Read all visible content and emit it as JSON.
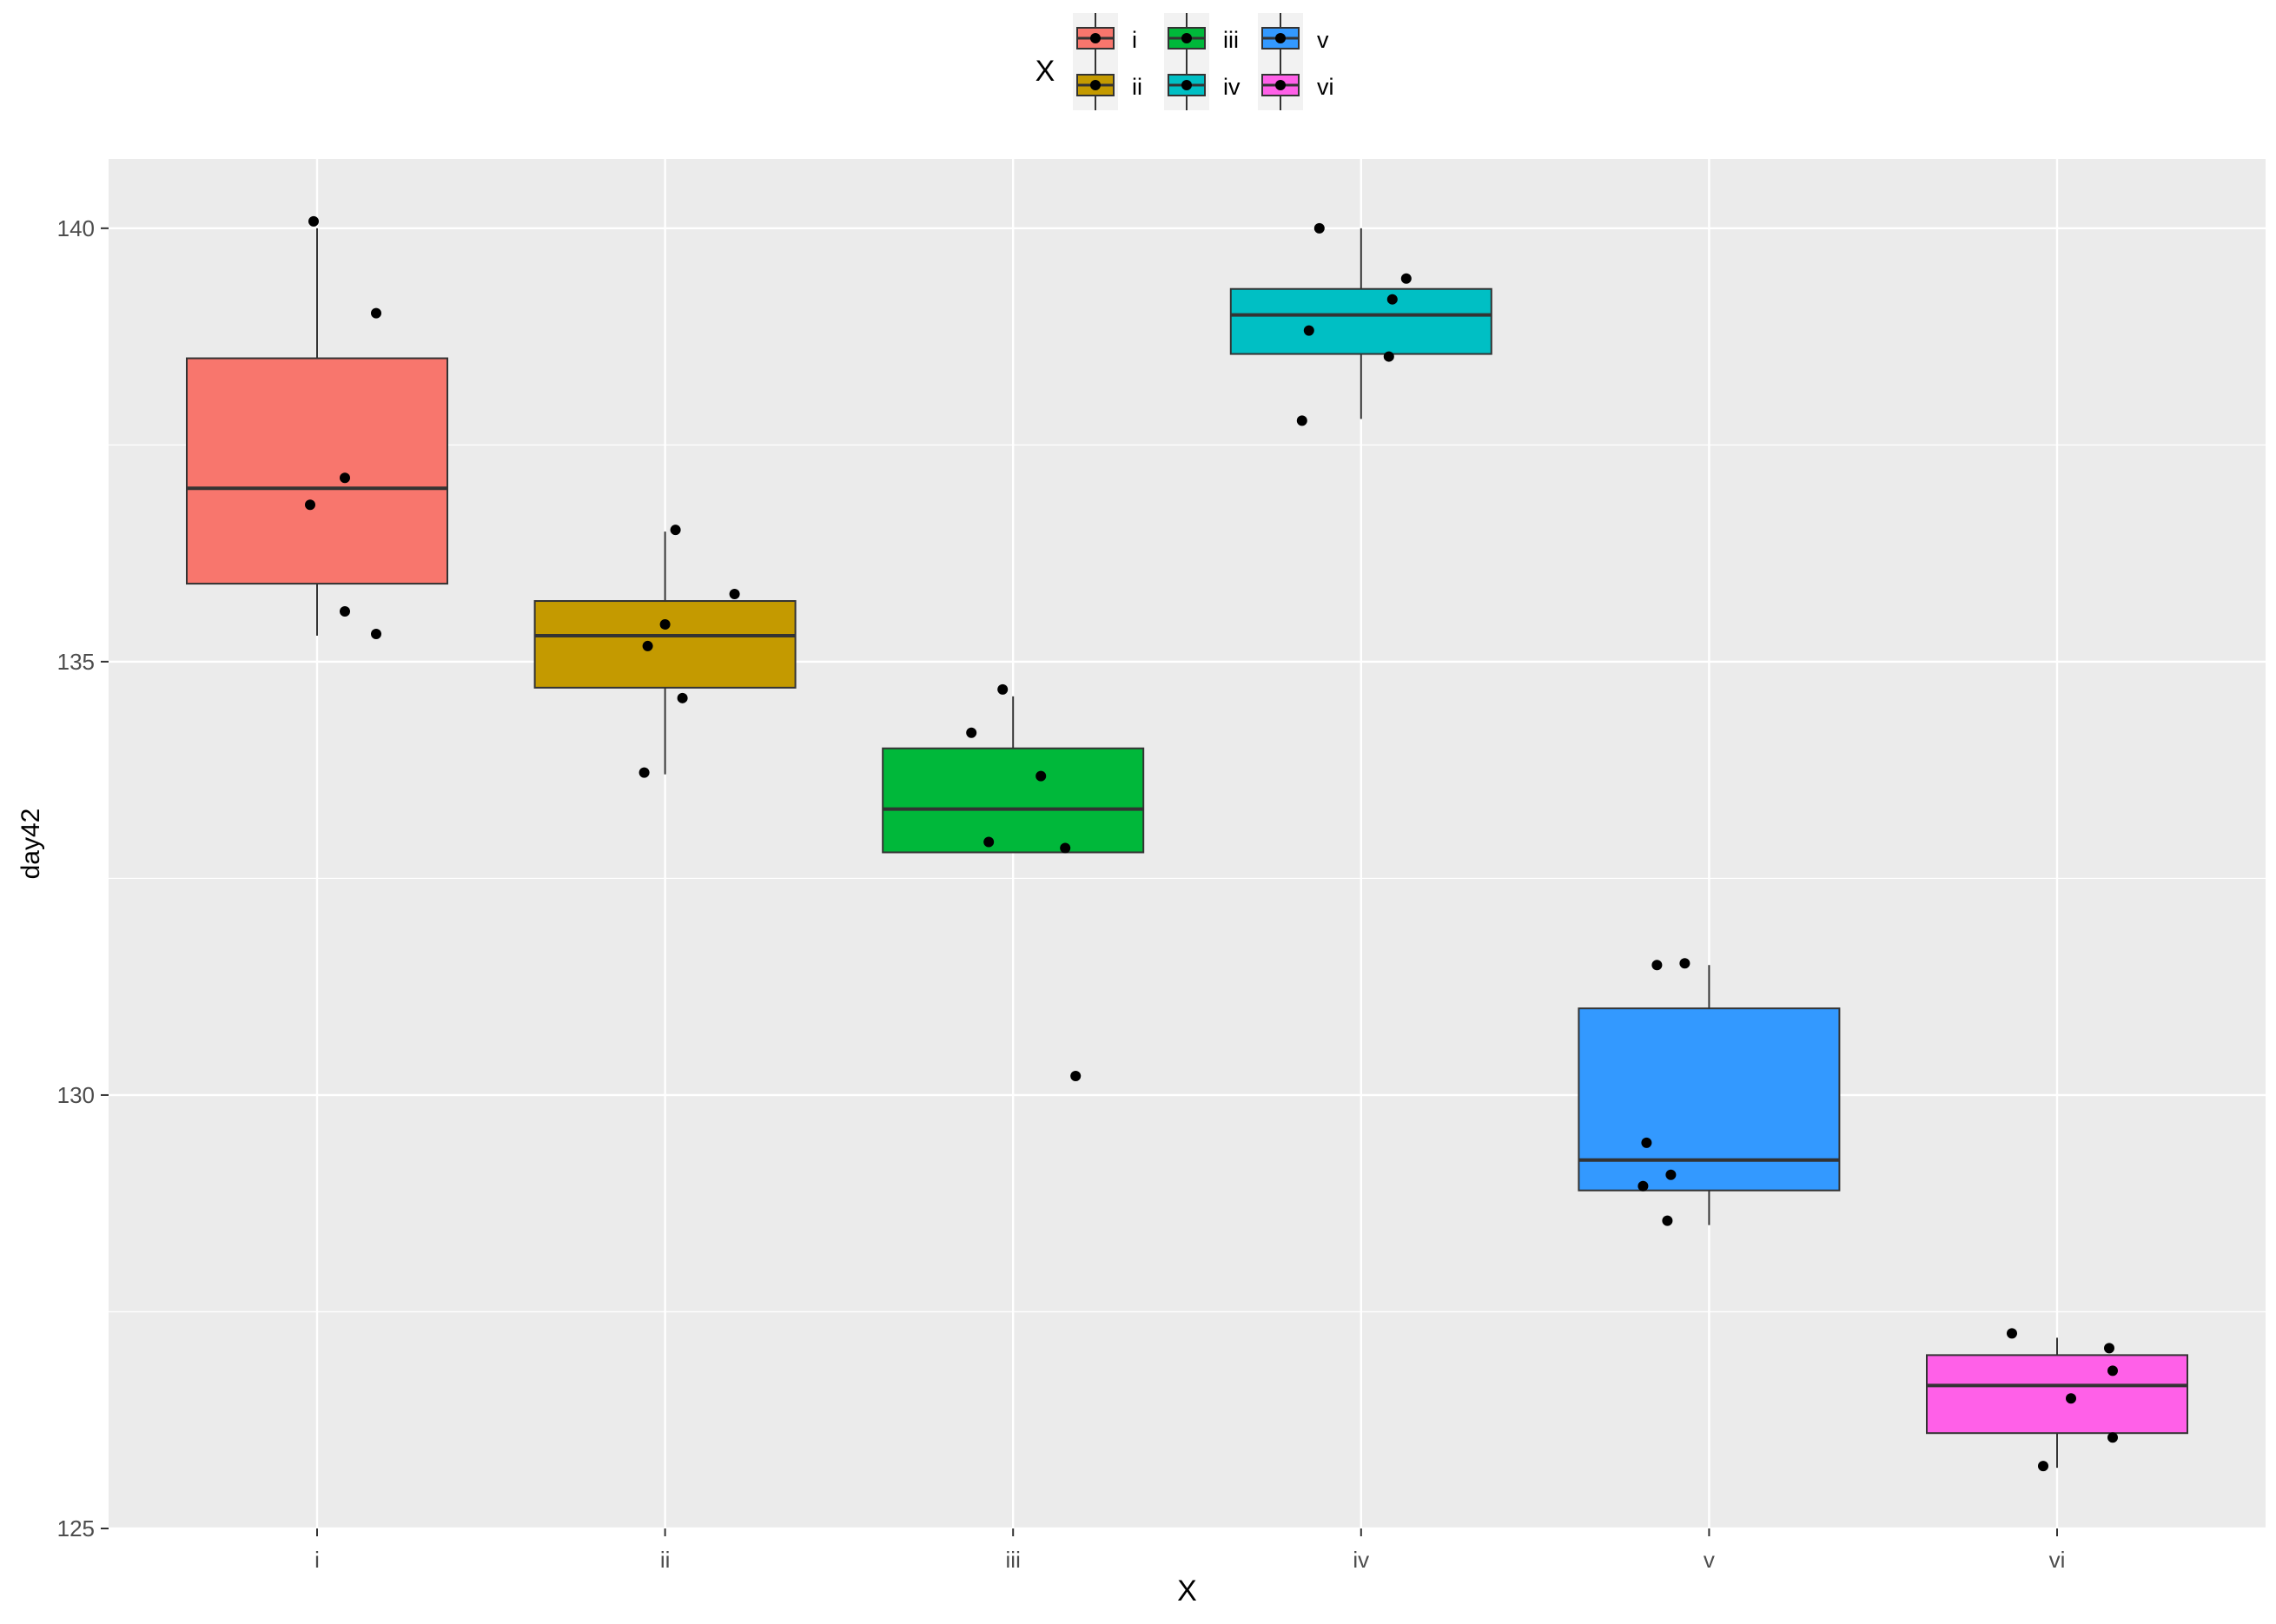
{
  "chart_data": {
    "type": "boxplot",
    "title": "",
    "xlabel": "X",
    "ylabel": "day42",
    "categories": [
      "i",
      "ii",
      "iii",
      "iv",
      "v",
      "vi"
    ],
    "ylim": [
      125,
      140.8
    ],
    "yticks": [
      125,
      130,
      135,
      140
    ],
    "grid": true,
    "legend": {
      "title": "X",
      "position": "top",
      "entries": [
        "i",
        "ii",
        "iii",
        "iv",
        "v",
        "vi"
      ]
    },
    "colors": {
      "i": "#F8766D",
      "ii": "#C49A00",
      "iii": "#00B83A",
      "iv": "#00BFC4",
      "v": "#3399FF",
      "vi": "#FF60E8",
      "panel_bg": "#EBEBEB",
      "grid": "#FFFFFF",
      "points": "#000000"
    },
    "boxes": [
      {
        "category": "i",
        "lower_whisker": 135.3,
        "q1": 135.9,
        "median": 137.0,
        "q3": 138.5,
        "upper_whisker": 140.0
      },
      {
        "category": "ii",
        "lower_whisker": 133.7,
        "q1": 134.7,
        "median": 135.3,
        "q3": 135.7,
        "upper_whisker": 136.5
      },
      {
        "category": "iii",
        "lower_whisker": 132.8,
        "q1": 132.8,
        "median": 133.3,
        "q3": 134.0,
        "upper_whisker": 134.6
      },
      {
        "category": "iv",
        "lower_whisker": 137.8,
        "q1": 138.55,
        "median": 139.0,
        "q3": 139.3,
        "upper_whisker": 140.0
      },
      {
        "category": "v",
        "lower_whisker": 128.5,
        "q1": 128.9,
        "median": 129.25,
        "q3": 131.0,
        "upper_whisker": 131.5
      },
      {
        "category": "vi",
        "lower_whisker": 125.7,
        "q1": 126.1,
        "median": 126.65,
        "q3": 127.0,
        "upper_whisker": 127.2
      }
    ],
    "points": [
      {
        "category": "i",
        "jitter": -0.01,
        "value": 140.08
      },
      {
        "category": "i",
        "jitter": 0.17,
        "value": 139.02
      },
      {
        "category": "i",
        "jitter": 0.08,
        "value": 137.12
      },
      {
        "category": "i",
        "jitter": -0.02,
        "value": 136.81
      },
      {
        "category": "i",
        "jitter": 0.08,
        "value": 135.58
      },
      {
        "category": "i",
        "jitter": 0.17,
        "value": 135.32
      },
      {
        "category": "ii",
        "jitter": 0.03,
        "value": 136.52
      },
      {
        "category": "ii",
        "jitter": 0.2,
        "value": 135.78
      },
      {
        "category": "ii",
        "jitter": 0.0,
        "value": 135.43
      },
      {
        "category": "ii",
        "jitter": -0.05,
        "value": 135.18
      },
      {
        "category": "ii",
        "jitter": 0.05,
        "value": 134.58
      },
      {
        "category": "ii",
        "jitter": -0.06,
        "value": 133.72
      },
      {
        "category": "iii",
        "jitter": -0.03,
        "value": 134.68
      },
      {
        "category": "iii",
        "jitter": -0.12,
        "value": 134.18
      },
      {
        "category": "iii",
        "jitter": 0.08,
        "value": 133.68
      },
      {
        "category": "iii",
        "jitter": -0.07,
        "value": 132.92
      },
      {
        "category": "iii",
        "jitter": 0.15,
        "value": 132.85
      },
      {
        "category": "iii",
        "jitter": 0.18,
        "value": 130.22
      },
      {
        "category": "iv",
        "jitter": -0.12,
        "value": 140.0
      },
      {
        "category": "iv",
        "jitter": 0.13,
        "value": 139.42
      },
      {
        "category": "iv",
        "jitter": 0.09,
        "value": 139.18
      },
      {
        "category": "iv",
        "jitter": -0.15,
        "value": 138.82
      },
      {
        "category": "iv",
        "jitter": 0.08,
        "value": 138.52
      },
      {
        "category": "iv",
        "jitter": -0.17,
        "value": 137.78
      },
      {
        "category": "v",
        "jitter": -0.15,
        "value": 131.5
      },
      {
        "category": "v",
        "jitter": -0.07,
        "value": 131.52
      },
      {
        "category": "v",
        "jitter": -0.18,
        "value": 129.45
      },
      {
        "category": "v",
        "jitter": -0.11,
        "value": 129.08
      },
      {
        "category": "v",
        "jitter": -0.19,
        "value": 128.95
      },
      {
        "category": "v",
        "jitter": -0.12,
        "value": 128.55
      },
      {
        "category": "vi",
        "jitter": -0.13,
        "value": 127.25
      },
      {
        "category": "vi",
        "jitter": 0.15,
        "value": 127.08
      },
      {
        "category": "vi",
        "jitter": 0.16,
        "value": 126.82
      },
      {
        "category": "vi",
        "jitter": 0.04,
        "value": 126.5
      },
      {
        "category": "vi",
        "jitter": 0.16,
        "value": 126.05
      },
      {
        "category": "vi",
        "jitter": -0.04,
        "value": 125.72
      }
    ]
  }
}
